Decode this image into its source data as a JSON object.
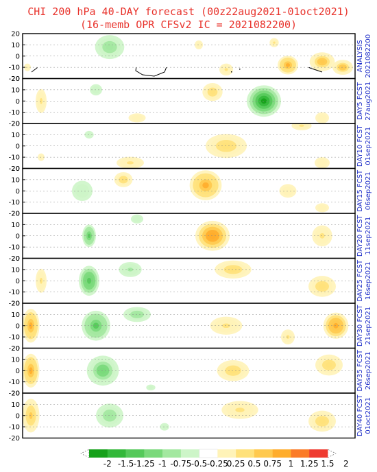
{
  "title": {
    "line1": "CHI 200 hPa 40-DAY forecast (00z22aug2021-01oct2021)",
    "line2": "(16-memb OPR CFSv2 IC = 2021082200)"
  },
  "lat_ticks": [
    "20",
    "10",
    "0",
    "-10",
    "-20"
  ],
  "panels": [
    {
      "label1": "ANALYSIS",
      "label2": "2021082200"
    },
    {
      "label1": "DAY5 FCST",
      "label2": "27aug2021"
    },
    {
      "label1": "DAY10 FCST",
      "label2": "01sep2021"
    },
    {
      "label1": "DAY15 FCST",
      "label2": "06sep2021"
    },
    {
      "label1": "DAY20 FCST",
      "label2": "11sep2021"
    },
    {
      "label1": "DAY25 FCST",
      "label2": "16sep2021"
    },
    {
      "label1": "DAY30 FCST",
      "label2": "21sep2021"
    },
    {
      "label1": "DAY35 FCST",
      "label2": "26sep2021"
    },
    {
      "label1": "DAY40 FCST",
      "label2": "01oct2021"
    }
  ],
  "colorbar": {
    "labels": [
      "-2",
      "-1.5",
      "-1.25",
      "-1",
      "-0.75",
      "-0.5",
      "-0.25",
      "0.25",
      "0.5",
      "0.75",
      "1",
      "1.25",
      "1.5",
      "2"
    ],
    "colors": [
      "#16a11a",
      "#33b83a",
      "#55c95a",
      "#7ad97b",
      "#a3e8a0",
      "#cdf5c8",
      "#ffffff",
      "#fff3b8",
      "#ffe17a",
      "#ffc94e",
      "#ffad2c",
      "#fb7b27",
      "#ef3b30"
    ],
    "left_arrow_color": "#ffffff",
    "right_arrow_color": "#ffffff"
  },
  "colors": {
    "title": "#e8322b",
    "panel_label": "#1f2fc8"
  },
  "blobs": [
    [
      [
        0,
        160,
        8,
        32,
        16,
        -0.6
      ],
      [
        0,
        420,
        -8,
        18,
        10,
        0.9
      ],
      [
        0,
        470,
        -5,
        22,
        10,
        0.8
      ],
      [
        0,
        500,
        -10,
        18,
        8,
        0.8
      ],
      [
        0,
        400,
        12,
        10,
        6,
        0.5
      ],
      [
        0,
        330,
        -12,
        15,
        8,
        0.5
      ],
      [
        0,
        40,
        -10,
        15,
        10,
        0.3
      ],
      [
        0,
        290,
        10,
        12,
        8,
        0.35
      ]
    ],
    [
      [
        1,
        385,
        0,
        25,
        14,
        -1.4
      ],
      [
        1,
        310,
        8,
        22,
        12,
        0.55
      ],
      [
        1,
        200,
        -15,
        25,
        8,
        0.4
      ],
      [
        1,
        60,
        0,
        12,
        16,
        0.5
      ],
      [
        1,
        470,
        -15,
        20,
        10,
        0.4
      ],
      [
        1,
        140,
        10,
        18,
        10,
        -0.4
      ]
    ],
    [
      [
        2,
        330,
        0,
        45,
        16,
        0.6
      ],
      [
        2,
        190,
        -15,
        30,
        8,
        0.45
      ],
      [
        2,
        440,
        18,
        22,
        6,
        0.5
      ],
      [
        2,
        60,
        -10,
        15,
        10,
        0.3
      ],
      [
        2,
        130,
        10,
        20,
        10,
        -0.3
      ],
      [
        2,
        470,
        -15,
        22,
        10,
        0.35
      ]
    ],
    [
      [
        3,
        300,
        5,
        28,
        16,
        0.9
      ],
      [
        3,
        180,
        10,
        20,
        10,
        0.55
      ],
      [
        3,
        120,
        0,
        30,
        18,
        -0.4
      ],
      [
        3,
        420,
        0,
        25,
        12,
        0.4
      ],
      [
        3,
        470,
        -15,
        20,
        8,
        0.35
      ]
    ],
    [
      [
        4,
        310,
        0,
        30,
        16,
        1.05
      ],
      [
        4,
        130,
        0,
        12,
        12,
        -0.9
      ],
      [
        4,
        200,
        15,
        18,
        8,
        -0.4
      ],
      [
        4,
        470,
        0,
        22,
        14,
        0.45
      ]
    ],
    [
      [
        5,
        130,
        0,
        18,
        16,
        -1.0
      ],
      [
        5,
        190,
        10,
        25,
        10,
        -0.5
      ],
      [
        5,
        340,
        10,
        40,
        12,
        0.6
      ],
      [
        5,
        470,
        -5,
        30,
        14,
        0.6
      ],
      [
        5,
        60,
        0,
        12,
        16,
        0.5
      ]
    ],
    [
      [
        6,
        140,
        0,
        25,
        16,
        -0.9
      ],
      [
        6,
        200,
        10,
        30,
        10,
        -0.6
      ],
      [
        6,
        45,
        0,
        15,
        18,
        0.9
      ],
      [
        6,
        330,
        0,
        35,
        12,
        0.5
      ],
      [
        6,
        490,
        0,
        22,
        14,
        1.0
      ],
      [
        6,
        420,
        -10,
        15,
        10,
        0.5
      ]
    ],
    [
      [
        7,
        150,
        0,
        28,
        16,
        -0.8
      ],
      [
        7,
        45,
        0,
        15,
        18,
        0.9
      ],
      [
        7,
        340,
        0,
        35,
        14,
        0.55
      ],
      [
        7,
        480,
        5,
        30,
        14,
        0.6
      ],
      [
        7,
        220,
        -15,
        20,
        8,
        -0.3
      ]
    ],
    [
      [
        8,
        160,
        0,
        30,
        16,
        -0.6
      ],
      [
        8,
        45,
        0,
        15,
        18,
        0.7
      ],
      [
        8,
        350,
        5,
        40,
        12,
        0.5
      ],
      [
        8,
        470,
        -5,
        30,
        14,
        0.55
      ],
      [
        8,
        240,
        -10,
        20,
        10,
        -0.3
      ]
    ]
  ]
}
